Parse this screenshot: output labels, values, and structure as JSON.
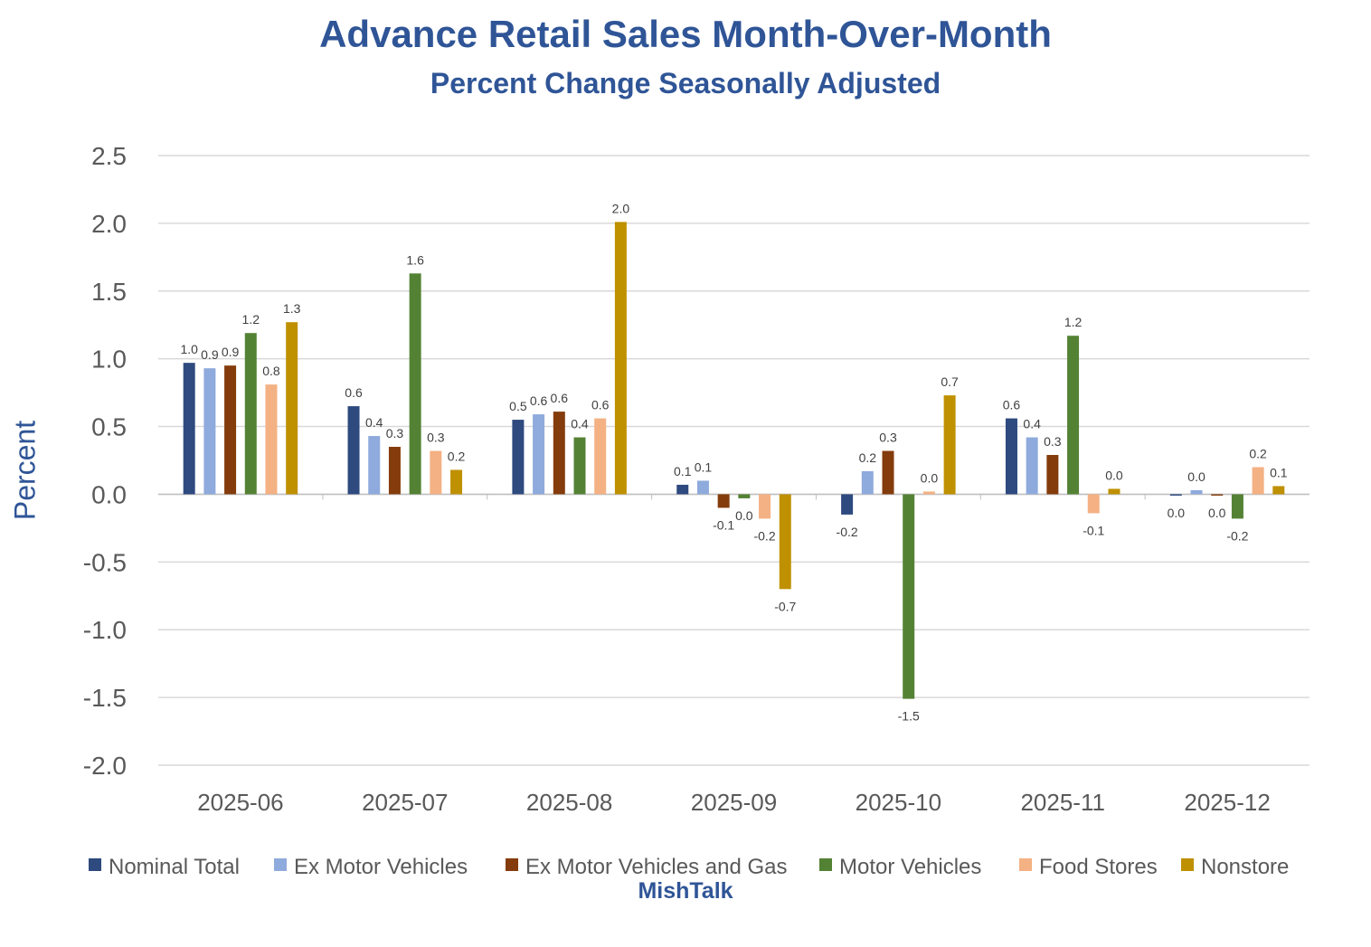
{
  "title": "Advance Retail Sales Month-Over-Month",
  "subtitle": "Percent Change Seasonally Adjusted",
  "watermark": "MishTalk",
  "chart_data": {
    "type": "bar",
    "ylabel": "Percent",
    "ylim": [
      -2.0,
      2.5
    ],
    "yticks": [
      "2.5",
      "2.0",
      "1.5",
      "1.0",
      "0.5",
      "0.0",
      "-0.5",
      "-1.0",
      "-1.5",
      "-2.0"
    ],
    "grid": true,
    "legend_position": "bottom",
    "categories": [
      "2025-06",
      "2025-07",
      "2025-08",
      "2025-09",
      "2025-10",
      "2025-11",
      "2025-12"
    ],
    "series": [
      {
        "name": "Nominal Total",
        "color": "#2E4A7F",
        "values": [
          0.97,
          0.65,
          0.55,
          0.07,
          -0.15,
          0.56,
          -0.01
        ],
        "labels": [
          "1.0",
          "0.6",
          "0.5",
          "0.1",
          "-0.2",
          "0.6",
          "0.0"
        ]
      },
      {
        "name": "Ex Motor Vehicles",
        "color": "#8FAADC",
        "values": [
          0.93,
          0.43,
          0.59,
          0.1,
          0.17,
          0.42,
          0.03
        ],
        "labels": [
          "0.9",
          "0.4",
          "0.6",
          "0.1",
          "0.2",
          "0.4",
          "0.0"
        ]
      },
      {
        "name": "Ex Motor Vehicles and Gas",
        "color": "#843C0C",
        "values": [
          0.95,
          0.35,
          0.61,
          -0.1,
          0.32,
          0.29,
          -0.01
        ],
        "labels": [
          "0.9",
          "0.3",
          "0.6",
          "-0.1",
          "0.3",
          "0.3",
          "0.0"
        ]
      },
      {
        "name": "Motor Vehicles",
        "color": "#548235",
        "values": [
          1.19,
          1.63,
          0.42,
          -0.03,
          -1.51,
          1.17,
          -0.18
        ],
        "labels": [
          "1.2",
          "1.6",
          "0.4",
          "0.0",
          "-1.5",
          "1.2",
          "-0.2"
        ]
      },
      {
        "name": "Food Stores",
        "color": "#F4B183",
        "values": [
          0.81,
          0.32,
          0.56,
          -0.18,
          0.02,
          -0.14,
          0.2
        ],
        "labels": [
          "0.8",
          "0.3",
          "0.6",
          "-0.2",
          "0.0",
          "-0.1",
          "0.2"
        ]
      },
      {
        "name": "Nonstore",
        "color": "#BF9000",
        "values": [
          1.27,
          0.18,
          2.01,
          -0.7,
          0.73,
          0.04,
          0.06
        ],
        "labels": [
          "1.3",
          "0.2",
          "2.0",
          "-0.7",
          "0.7",
          "0.0",
          "0.1"
        ]
      }
    ]
  }
}
